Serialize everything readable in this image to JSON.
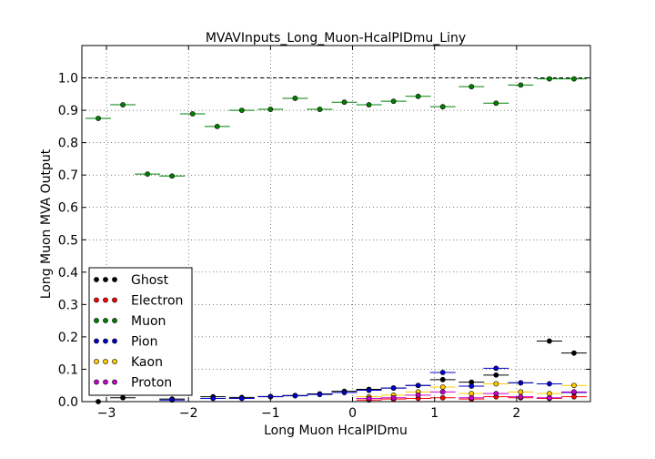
{
  "chart_data": {
    "type": "scatter",
    "title": "MVAVInputs_Long_Muon-HcalPIDmu_Liny",
    "xlabel": "Long Muon HcalPIDmu",
    "ylabel": "Long Muon MVA Output",
    "xlim": [
      -3.3,
      2.9
    ],
    "ylim": [
      0.0,
      1.1
    ],
    "x_ticks": [
      -3,
      -2,
      -1,
      0,
      1,
      2
    ],
    "x_tick_labels": [
      "−3",
      "−2",
      "−1",
      "0",
      "1",
      "2"
    ],
    "y_ticks": [
      0.0,
      0.1,
      0.2,
      0.3,
      0.4,
      0.5,
      0.6,
      0.7,
      0.8,
      0.9,
      1.0
    ],
    "y_tick_labels": [
      "0.0",
      "0.1",
      "0.2",
      "0.3",
      "0.4",
      "0.5",
      "0.6",
      "0.7",
      "0.8",
      "0.9",
      "1.0"
    ],
    "grid": true,
    "reference_line": 1.0,
    "legend_position": "lower-left",
    "x_bin_half_width": 0.155,
    "series": [
      {
        "name": "Ghost",
        "color": "#000000",
        "x": [
          -3.1,
          -2.8,
          -2.2,
          -1.7,
          -1.35,
          -1.0,
          -0.7,
          -0.4,
          -0.1,
          0.2,
          0.5,
          0.8,
          1.1,
          1.45,
          1.75,
          2.05,
          2.4,
          2.7
        ],
        "y": [
          0.0,
          0.012,
          0.008,
          0.015,
          0.013,
          0.016,
          0.019,
          0.024,
          0.032,
          0.038,
          0.042,
          0.05,
          0.068,
          0.06,
          0.082,
          0.058,
          0.187,
          0.15
        ],
        "yerr": [
          0.002,
          0.003,
          0.003,
          0.003,
          0.003,
          0.003,
          0.003,
          0.003,
          0.003,
          0.003,
          0.003,
          0.004,
          0.004,
          0.004,
          0.005,
          0.004,
          0.005,
          0.005
        ]
      },
      {
        "name": "Electron",
        "color": "#ff0000",
        "x": [
          0.2,
          0.5,
          0.8,
          1.1,
          1.45,
          1.75,
          2.05,
          2.4,
          2.7
        ],
        "y": [
          0.005,
          0.008,
          0.01,
          0.012,
          0.008,
          0.015,
          0.012,
          0.01,
          0.015
        ],
        "yerr": [
          0.003,
          0.003,
          0.003,
          0.003,
          0.003,
          0.004,
          0.003,
          0.003,
          0.003
        ]
      },
      {
        "name": "Muon",
        "color": "#008000",
        "x": [
          -3.1,
          -2.8,
          -2.5,
          -2.2,
          -1.95,
          -1.65,
          -1.35,
          -1.0,
          -0.7,
          -0.4,
          -0.1,
          0.2,
          0.5,
          0.8,
          1.1,
          1.45,
          1.75,
          2.05,
          2.4,
          2.7
        ],
        "y": [
          0.875,
          0.917,
          0.703,
          0.697,
          0.889,
          0.85,
          0.9,
          0.903,
          0.937,
          0.903,
          0.925,
          0.917,
          0.928,
          0.943,
          0.911,
          0.973,
          0.922,
          0.978,
          0.997,
          0.997
        ],
        "yerr": [
          0.004,
          0.004,
          0.005,
          0.005,
          0.004,
          0.004,
          0.003,
          0.003,
          0.003,
          0.003,
          0.003,
          0.003,
          0.003,
          0.003,
          0.003,
          0.003,
          0.003,
          0.003,
          0.002,
          0.002
        ]
      },
      {
        "name": "Pion",
        "color": "#0000cc",
        "x": [
          -2.2,
          -1.7,
          -1.35,
          -1.0,
          -0.7,
          -0.4,
          -0.1,
          0.2,
          0.5,
          0.8,
          1.1,
          1.45,
          1.75,
          2.05,
          2.4,
          2.7
        ],
        "y": [
          0.005,
          0.01,
          0.01,
          0.015,
          0.018,
          0.022,
          0.028,
          0.035,
          0.042,
          0.05,
          0.09,
          0.048,
          0.103,
          0.058,
          0.055,
          0.028
        ],
        "yerr": [
          0.002,
          0.002,
          0.002,
          0.002,
          0.002,
          0.003,
          0.003,
          0.003,
          0.003,
          0.004,
          0.005,
          0.004,
          0.005,
          0.004,
          0.004,
          0.003
        ]
      },
      {
        "name": "Kaon",
        "color": "#ffcc00",
        "x": [
          0.2,
          0.5,
          0.8,
          1.1,
          1.45,
          1.75,
          2.05,
          2.4,
          2.7
        ],
        "y": [
          0.015,
          0.02,
          0.03,
          0.045,
          0.025,
          0.055,
          0.03,
          0.025,
          0.05
        ],
        "yerr": [
          0.003,
          0.003,
          0.003,
          0.004,
          0.003,
          0.004,
          0.003,
          0.003,
          0.004
        ]
      },
      {
        "name": "Proton",
        "color": "#cc00cc",
        "x": [
          0.2,
          0.5,
          0.8,
          1.1,
          1.45,
          1.75,
          2.05,
          2.4,
          2.7
        ],
        "y": [
          0.01,
          0.012,
          0.02,
          0.03,
          0.012,
          0.025,
          0.015,
          0.012,
          0.03
        ],
        "yerr": [
          0.003,
          0.003,
          0.003,
          0.003,
          0.003,
          0.003,
          0.003,
          0.003,
          0.003
        ]
      }
    ]
  }
}
